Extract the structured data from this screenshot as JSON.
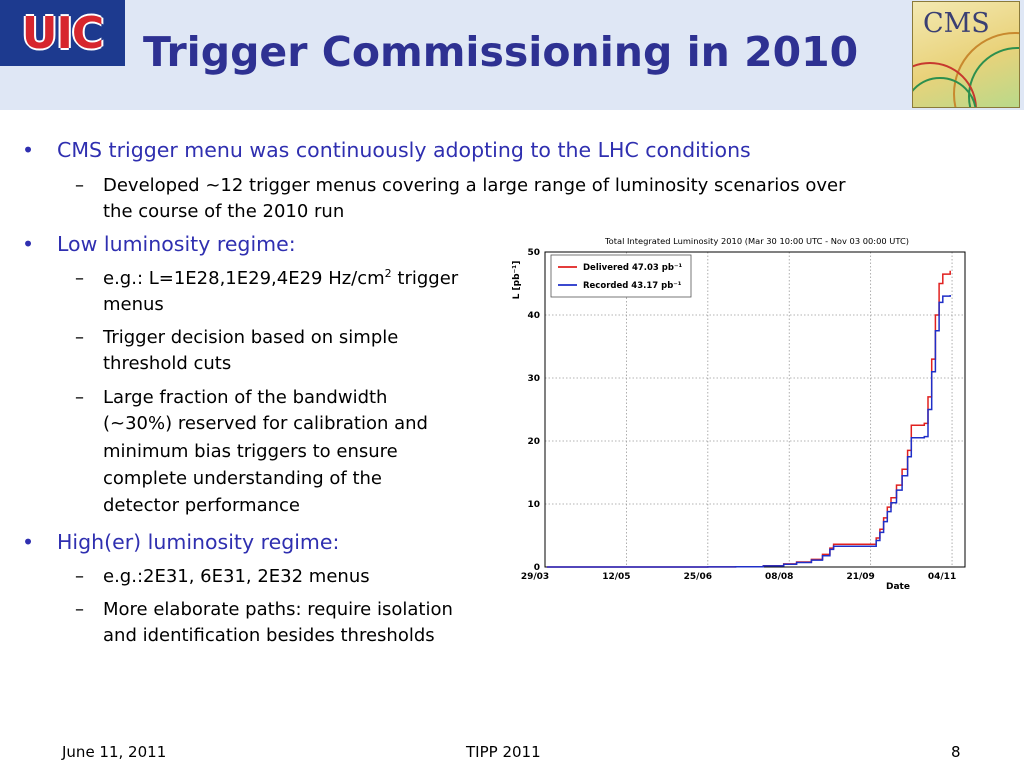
{
  "header": {
    "logo_left": "UIC",
    "title": "Trigger Commissioning in 2010",
    "logo_right": "CMS"
  },
  "glyphs": {
    "bullet": "•",
    "dash": "–"
  },
  "content": {
    "b1": "CMS trigger menu was continuously adopting to the LHC conditions",
    "b1_s1": [
      "Developed ~12 trigger menus covering a large range of luminosity scenarios over",
      "the course of the 2010 run"
    ],
    "b2": "Low luminosity regime:",
    "b2_s1": {
      "pre": "e.g.: L=1E28,1E29,4E29 Hz/cm",
      "sup": "2",
      "post": " trigger",
      "line2": "menus"
    },
    "b2_s2": [
      "Trigger decision based on simple",
      "threshold cuts"
    ],
    "b2_s3": [
      "Large fraction of the bandwidth",
      "(~30%) reserved for calibration and",
      "minimum bias triggers to ensure",
      "complete understanding of the",
      "detector performance"
    ],
    "b3": "High(er) luminosity regime:",
    "b3_s1": [
      "e.g.:2E31, 6E31, 2E32 menus"
    ],
    "b3_s2": [
      "More elaborate paths: require isolation",
      "and identification besides thresholds"
    ]
  },
  "footer": {
    "date": "June 11, 2011",
    "event": "TIPP 2011",
    "page": "8"
  },
  "colors": {
    "title": "#2e3192",
    "level1_text": "#2f2fb0",
    "delivered": "#e0201f",
    "recorded": "#1f2fc8"
  },
  "chart_data": {
    "type": "line",
    "title": "Total Integrated Luminosity 2010 (Mar 30 10:00 UTC - Nov 03 00:00 UTC)",
    "xlabel": "Date",
    "ylabel": "L [pb⁻¹]",
    "ylim": [
      0,
      50
    ],
    "xlim": [
      "2010-03-29",
      "2010-11-11"
    ],
    "yticks": [
      0,
      10,
      20,
      30,
      40,
      50
    ],
    "xticks": [
      {
        "date": "2010-03-29",
        "label": "29/03"
      },
      {
        "date": "2010-05-12",
        "label": "12/05"
      },
      {
        "date": "2010-06-25",
        "label": "25/06"
      },
      {
        "date": "2010-08-08",
        "label": "08/08"
      },
      {
        "date": "2010-09-21",
        "label": "21/09"
      },
      {
        "date": "2010-11-04",
        "label": "04/11"
      }
    ],
    "grid": true,
    "legend_position": "top-left",
    "series": [
      {
        "name": "Delivered 47.03 pb⁻¹",
        "color": "#e0201f",
        "x": [
          "2010-03-30",
          "2010-05-15",
          "2010-06-25",
          "2010-07-10",
          "2010-07-25",
          "2010-08-05",
          "2010-08-12",
          "2010-08-20",
          "2010-08-26",
          "2010-08-30",
          "2010-09-01",
          "2010-09-22",
          "2010-09-24",
          "2010-09-26",
          "2010-09-28",
          "2010-09-30",
          "2010-10-02",
          "2010-10-05",
          "2010-10-08",
          "2010-10-11",
          "2010-10-13",
          "2010-10-20",
          "2010-10-22",
          "2010-10-24",
          "2010-10-26",
          "2010-10-28",
          "2010-10-30",
          "2010-11-03"
        ],
        "y": [
          0,
          0.002,
          0.01,
          0.05,
          0.2,
          0.5,
          0.8,
          1.2,
          2.0,
          3.0,
          3.6,
          3.6,
          4.6,
          6.0,
          7.8,
          9.5,
          11.0,
          13.0,
          15.5,
          18.5,
          22.5,
          22.8,
          27.0,
          33.0,
          40.0,
          45.0,
          46.5,
          47.03
        ]
      },
      {
        "name": "Recorded 43.17 pb⁻¹",
        "color": "#1f2fc8",
        "x": [
          "2010-03-30",
          "2010-05-15",
          "2010-06-25",
          "2010-07-10",
          "2010-07-25",
          "2010-08-05",
          "2010-08-12",
          "2010-08-20",
          "2010-08-26",
          "2010-08-30",
          "2010-09-01",
          "2010-09-22",
          "2010-09-24",
          "2010-09-26",
          "2010-09-28",
          "2010-09-30",
          "2010-10-02",
          "2010-10-05",
          "2010-10-08",
          "2010-10-11",
          "2010-10-13",
          "2010-10-20",
          "2010-10-22",
          "2010-10-24",
          "2010-10-26",
          "2010-10-28",
          "2010-10-30",
          "2010-11-03"
        ],
        "y": [
          0,
          0.002,
          0.009,
          0.045,
          0.18,
          0.45,
          0.72,
          1.1,
          1.8,
          2.8,
          3.3,
          3.3,
          4.2,
          5.5,
          7.2,
          8.8,
          10.2,
          12.2,
          14.5,
          17.5,
          20.5,
          20.7,
          25.0,
          31.0,
          37.5,
          42.0,
          43.0,
          43.17
        ]
      }
    ]
  }
}
